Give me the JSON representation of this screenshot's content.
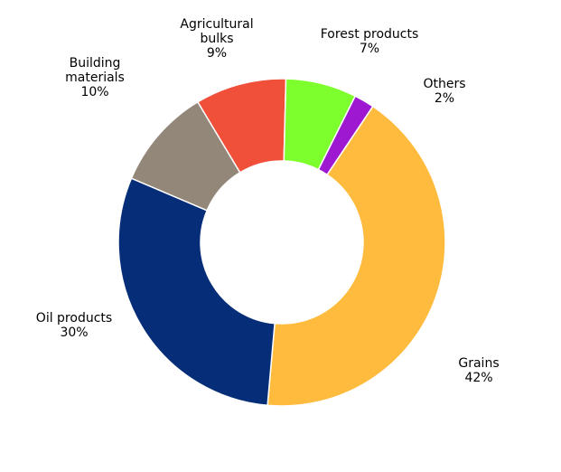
{
  "chart_data": {
    "type": "pie",
    "variant": "donut",
    "start": "top, clockwise",
    "title": "",
    "legend": "none",
    "slices": [
      {
        "name": "Others",
        "label_lines": [
          "Others"
        ],
        "value_label": "2%",
        "value": 2,
        "color": "#9E18D2"
      },
      {
        "name": "Grains",
        "label_lines": [
          "Grains"
        ],
        "value_label": "42%",
        "value": 42,
        "color": "#FFBB3D"
      },
      {
        "name": "Oil products",
        "label_lines": [
          "Oil products"
        ],
        "value_label": "30%",
        "value": 30,
        "color": "#062E78"
      },
      {
        "name": "Building materials",
        "label_lines": [
          "Building",
          "materials"
        ],
        "value_label": "10%",
        "value": 10,
        "color": "#938779"
      },
      {
        "name": "Agricultural bulks",
        "label_lines": [
          "Agricultural",
          "bulks"
        ],
        "value_label": "9%",
        "value": 9,
        "color": "#F0503A"
      },
      {
        "name": "Forest products",
        "label_lines": [
          "Forest products"
        ],
        "value_label": "7%",
        "value": 7,
        "color": "#7DFF2E"
      }
    ]
  }
}
